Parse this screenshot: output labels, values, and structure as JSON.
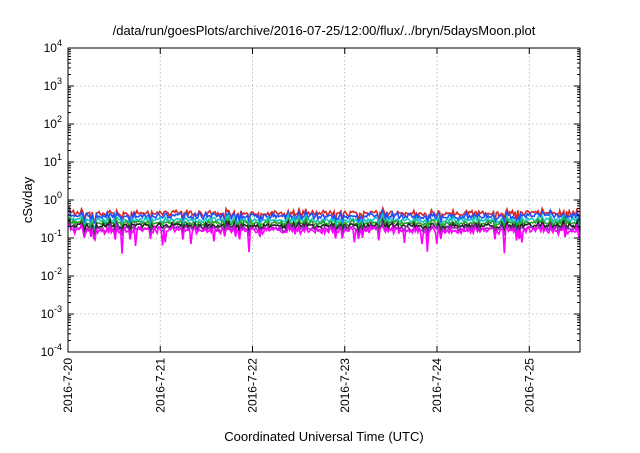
{
  "chart_data": {
    "type": "line",
    "title": "/data/run/goesPlots/archive/2016-07-25/12:00/flux/../bryn/5daysMoon.plot",
    "xlabel": "Coordinated Universal Time (UTC)",
    "ylabel": "cSv/day",
    "yscale": "log",
    "ylim": [
      0.0001,
      10000
    ],
    "x_ticks": [
      "2016-7-20",
      "2016-7-21",
      "2016-7-22",
      "2016-7-23",
      "2016-7-24",
      "2016-7-25"
    ],
    "x_range_days": [
      0,
      5.55
    ],
    "y_ticks": [
      {
        "base": "10",
        "exp": "4",
        "value": 10000
      },
      {
        "base": "10",
        "exp": "3",
        "value": 1000
      },
      {
        "base": "10",
        "exp": "2",
        "value": 100
      },
      {
        "base": "10",
        "exp": "1",
        "value": 10
      },
      {
        "base": "10",
        "exp": "0",
        "value": 1
      },
      {
        "base": "10",
        "exp": "-1",
        "value": 0.1
      },
      {
        "base": "10",
        "exp": "-2",
        "value": 0.01
      },
      {
        "base": "10",
        "exp": "-3",
        "value": 0.001
      },
      {
        "base": "10",
        "exp": "-4",
        "value": 0.0001
      }
    ],
    "grid": true,
    "series": [
      {
        "color": "#d62728",
        "base": 0.45,
        "amp": 0.22
      },
      {
        "color": "#1f4fff",
        "base": 0.38,
        "amp": 0.25
      },
      {
        "color": "#17c8c0",
        "base": 0.3,
        "amp": 0.18
      },
      {
        "color": "#2ca02c",
        "base": 0.25,
        "amp": 0.16
      },
      {
        "color": "#222222",
        "base": 0.21,
        "amp": 0.18
      },
      {
        "color": "#8c2db0",
        "base": 0.18,
        "amp": 0.2
      },
      {
        "color": "#ff00ff",
        "base": 0.16,
        "amp": 0.28
      }
    ]
  }
}
